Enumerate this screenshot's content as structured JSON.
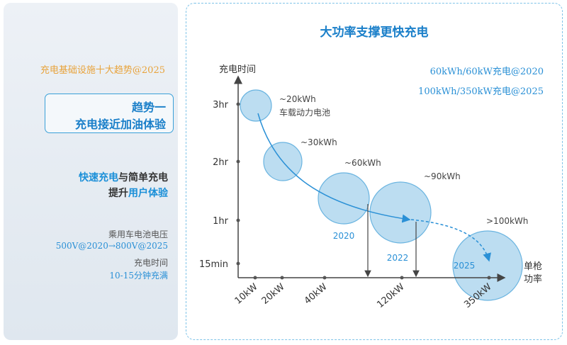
{
  "sidebar": {
    "series_title": "充电基础设施十大趋势@2025",
    "trend": {
      "line1": "趋势一",
      "line2": "充电接近加油体验"
    },
    "feature": {
      "part1": "快速充电",
      "part2": "与简单充电",
      "part3": "提升",
      "part4": "用户体验"
    },
    "facts": [
      {
        "label": "乘用车电池电压",
        "value": "500V@2020→800V@2025"
      },
      {
        "label": "充电时间",
        "value": "10-15分钟充满"
      }
    ]
  },
  "chart": {
    "title": "大功率支撑更快充电",
    "legend": [
      "60kWh/60kW充电@2020",
      "100kWh/350kW充电@2025"
    ]
  },
  "chart_data": {
    "type": "scatter",
    "title": "大功率支撑更快充电",
    "xlabel": "单枪功率",
    "ylabel": "充电时间",
    "x_ticks": [
      "10kW",
      "20kW",
      "40kW",
      "120kW",
      "350kW"
    ],
    "y_ticks": [
      "3hr",
      "2hr",
      "1hr",
      "15min"
    ],
    "points": [
      {
        "power": "10kW",
        "time": "3hr",
        "label": "~20kWh",
        "sublabel": "车载动力电池",
        "year": ""
      },
      {
        "power": "20kW",
        "time": "2hr",
        "label": "~30kWh",
        "sublabel": "",
        "year": ""
      },
      {
        "power": "40kW",
        "time": "1.4hr",
        "label": "~60kWh",
        "sublabel": "",
        "year": "2020"
      },
      {
        "power": "120kW",
        "time": "1.1hr",
        "label": "~90kWh",
        "sublabel": "",
        "year": "2022"
      },
      {
        "power": "350kW",
        "time": "15min",
        "label": ">100kWh",
        "sublabel": "",
        "year": "2025"
      }
    ],
    "arrows_to_axis": [
      "2020",
      "2022"
    ],
    "colors": {
      "bubble_fill": "#b5d9ef",
      "bubble_stroke": "#6ab4e0",
      "accent": "#2a90d6",
      "axis": "#444444"
    },
    "grid": false
  }
}
